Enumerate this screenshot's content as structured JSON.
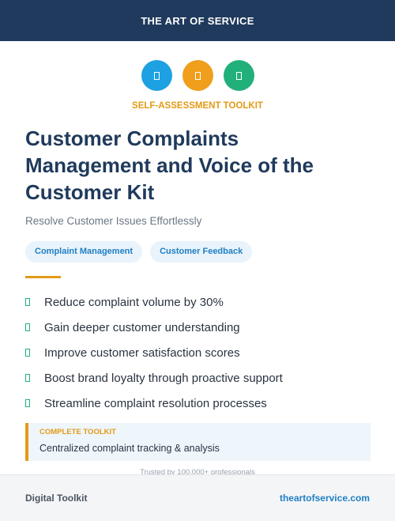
{
  "header": {
    "title": "THE ART OF SERVICE"
  },
  "eyebrow": "SELF-ASSESSMENT TOOLKIT",
  "title_lines": [
    "Customer Complaints",
    "Management and Voice of the",
    "Customer Kit"
  ],
  "subtitle": "Resolve Customer Issues Effortlessly",
  "tags": [
    "Complaint Management",
    "Customer Feedback"
  ],
  "benefits": [
    "Reduce complaint volume by 30%",
    "Gain deeper customer understanding",
    "Improve customer satisfaction scores",
    "Boost brand loyalty through proactive support",
    "Streamline complaint resolution processes"
  ],
  "callout": {
    "label": "COMPLETE TOOLKIT",
    "text": "Centralized complaint tracking & analysis"
  },
  "trust": "Trusted by 100,000+ professionals",
  "footer": {
    "left": "Digital Toolkit",
    "right": "theartofservice.com"
  }
}
